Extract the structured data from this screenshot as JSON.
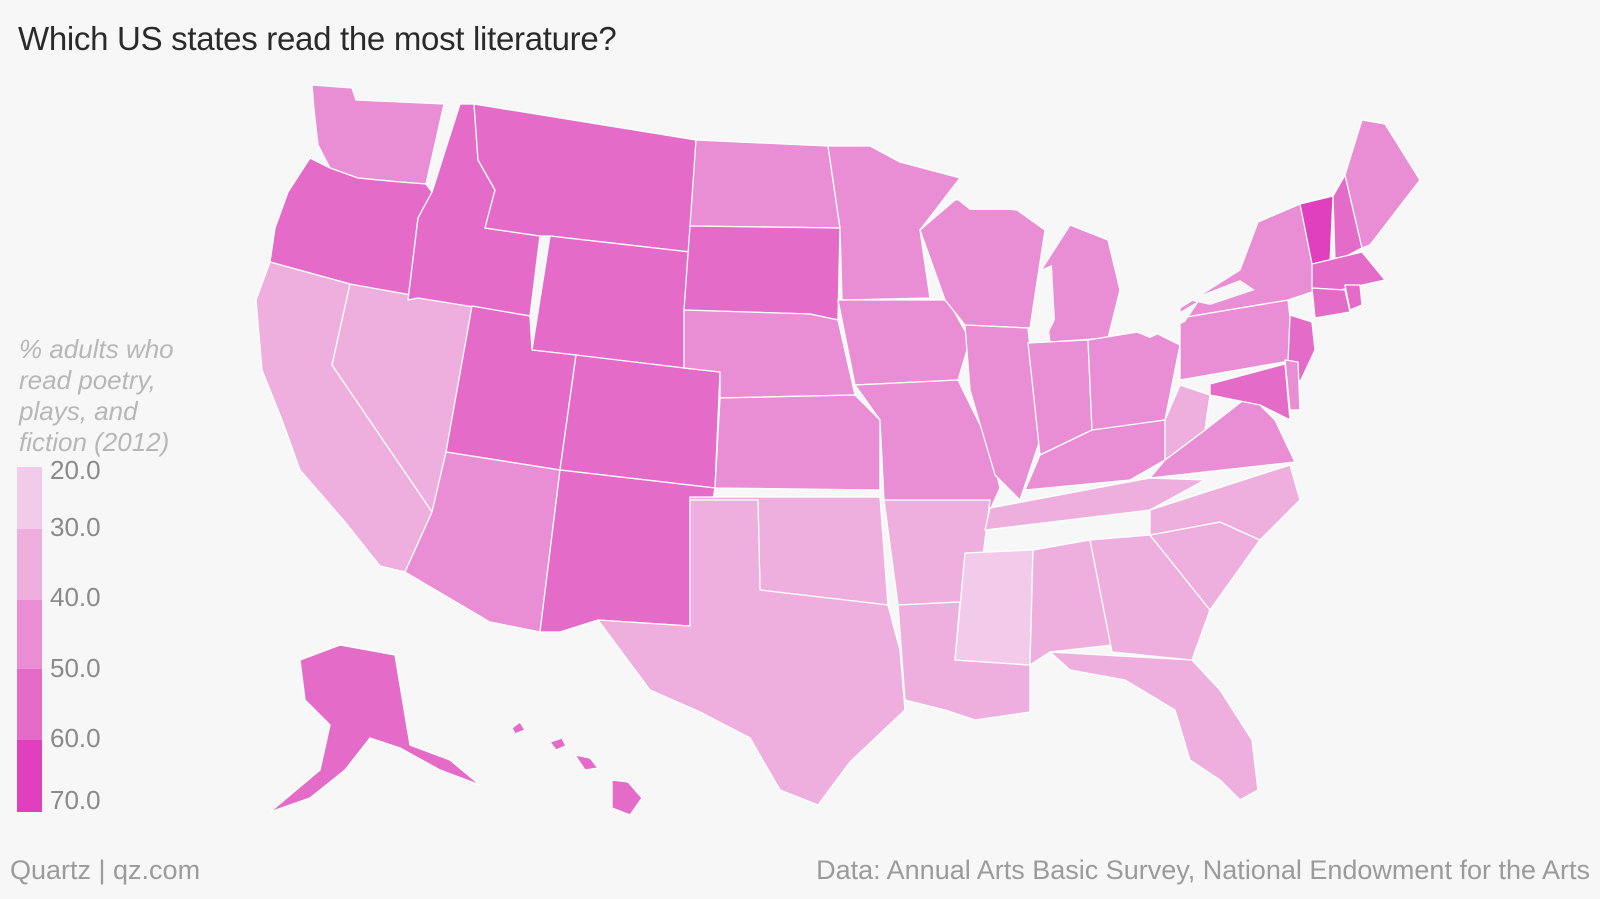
{
  "title": "Which US states read the most literature?",
  "legend": {
    "title": "% adults who\nread poetry,\nplays, and\nfiction (2012)",
    "ticks": [
      "20.0",
      "30.0",
      "40.0",
      "50.0",
      "60.0",
      "70.0"
    ],
    "bins": [
      {
        "from": 20,
        "to": 30,
        "color": "#f3cbea"
      },
      {
        "from": 30,
        "to": 40,
        "color": "#eeafdf"
      },
      {
        "from": 40,
        "to": 50,
        "color": "#e98dd4"
      },
      {
        "from": 50,
        "to": 60,
        "color": "#e56bc8"
      },
      {
        "from": 60,
        "to": 70,
        "color": "#e03fbd"
      }
    ]
  },
  "footer": {
    "left": "Quartz | qz.com",
    "right": "Data: Annual Arts Basic Survey, National Endowment for the Arts"
  },
  "map_data": {
    "type": "choropleth",
    "region": "United States",
    "states": [
      {
        "code": "WA",
        "bin": 2
      },
      {
        "code": "OR",
        "bin": 3
      },
      {
        "code": "CA",
        "bin": 1
      },
      {
        "code": "NV",
        "bin": 1
      },
      {
        "code": "ID",
        "bin": 3
      },
      {
        "code": "MT",
        "bin": 3
      },
      {
        "code": "WY",
        "bin": 3
      },
      {
        "code": "UT",
        "bin": 3
      },
      {
        "code": "AZ",
        "bin": 2
      },
      {
        "code": "CO",
        "bin": 3
      },
      {
        "code": "NM",
        "bin": 3
      },
      {
        "code": "ND",
        "bin": 2
      },
      {
        "code": "SD",
        "bin": 3
      },
      {
        "code": "NE",
        "bin": 2
      },
      {
        "code": "KS",
        "bin": 2
      },
      {
        "code": "OK",
        "bin": 1
      },
      {
        "code": "TX",
        "bin": 1
      },
      {
        "code": "MN",
        "bin": 2
      },
      {
        "code": "IA",
        "bin": 2
      },
      {
        "code": "MO",
        "bin": 2
      },
      {
        "code": "AR",
        "bin": 1
      },
      {
        "code": "LA",
        "bin": 1
      },
      {
        "code": "WI",
        "bin": 2
      },
      {
        "code": "IL",
        "bin": 2
      },
      {
        "code": "MI",
        "bin": 2
      },
      {
        "code": "IN",
        "bin": 2
      },
      {
        "code": "OH",
        "bin": 2
      },
      {
        "code": "KY",
        "bin": 2
      },
      {
        "code": "TN",
        "bin": 1
      },
      {
        "code": "MS",
        "bin": 0
      },
      {
        "code": "AL",
        "bin": 1
      },
      {
        "code": "GA",
        "bin": 1
      },
      {
        "code": "FL",
        "bin": 1
      },
      {
        "code": "SC",
        "bin": 1
      },
      {
        "code": "NC",
        "bin": 1
      },
      {
        "code": "VA",
        "bin": 2
      },
      {
        "code": "WV",
        "bin": 1
      },
      {
        "code": "PA",
        "bin": 2
      },
      {
        "code": "NY",
        "bin": 2
      },
      {
        "code": "VT",
        "bin": 4
      },
      {
        "code": "NH",
        "bin": 3
      },
      {
        "code": "ME",
        "bin": 2
      },
      {
        "code": "MA",
        "bin": 3
      },
      {
        "code": "CT",
        "bin": 3
      },
      {
        "code": "RI",
        "bin": 3
      },
      {
        "code": "NJ",
        "bin": 3
      },
      {
        "code": "DE",
        "bin": 2
      },
      {
        "code": "MD",
        "bin": 3
      },
      {
        "code": "AK",
        "bin": 3
      },
      {
        "code": "HI",
        "bin": 3
      }
    ]
  }
}
